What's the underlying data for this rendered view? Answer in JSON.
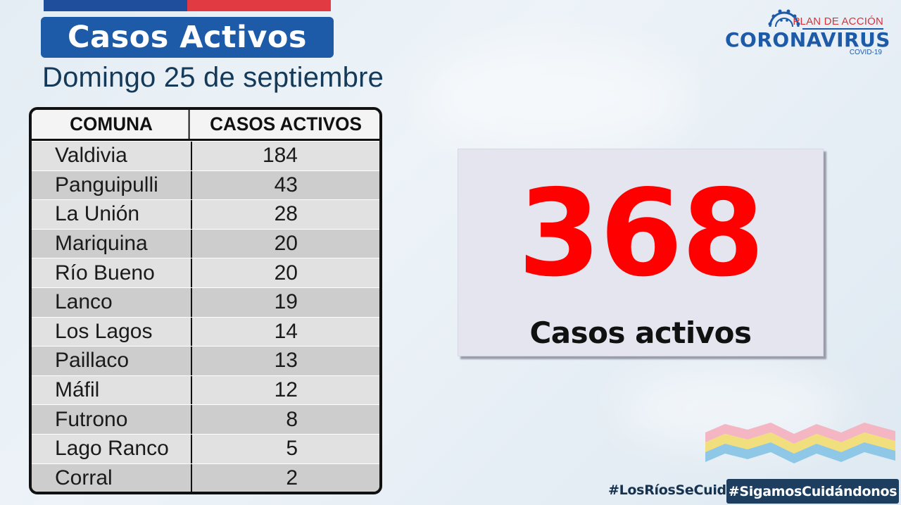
{
  "header": {
    "title": "Casos Activos",
    "subtitle": "Domingo 25 de septiembre"
  },
  "logo": {
    "plan_label": "PLAN DE ACCIÓN",
    "main_label": "CORONAVIRUS",
    "sub_label": "COVID-19"
  },
  "table": {
    "headers": [
      "COMUNA",
      "CASOS ACTIVOS"
    ],
    "rows": [
      {
        "comuna": "Valdivia",
        "casos": "184"
      },
      {
        "comuna": "Panguipulli",
        "casos": "43"
      },
      {
        "comuna": "La Unión",
        "casos": "28"
      },
      {
        "comuna": "Mariquina",
        "casos": "20"
      },
      {
        "comuna": "Río Bueno",
        "casos": "20"
      },
      {
        "comuna": "Lanco",
        "casos": "19"
      },
      {
        "comuna": "Los Lagos",
        "casos": "14"
      },
      {
        "comuna": "Paillaco",
        "casos": "13"
      },
      {
        "comuna": "Máfil",
        "casos": "12"
      },
      {
        "comuna": "Futrono",
        "casos": "8"
      },
      {
        "comuna": "Lago Ranco",
        "casos": "5"
      },
      {
        "comuna": "Corral",
        "casos": "2"
      }
    ]
  },
  "total": {
    "value": "368",
    "label": "Casos activos"
  },
  "hashtags": {
    "primary": "#LosRíosSeCuida",
    "secondary": "#SigamosCuidándonos"
  },
  "colors": {
    "brand_blue": "#1d5aa8",
    "flag_red": "#e23a42",
    "total_red": "#ff0000",
    "hashtag_bg": "#1d3e5e"
  }
}
